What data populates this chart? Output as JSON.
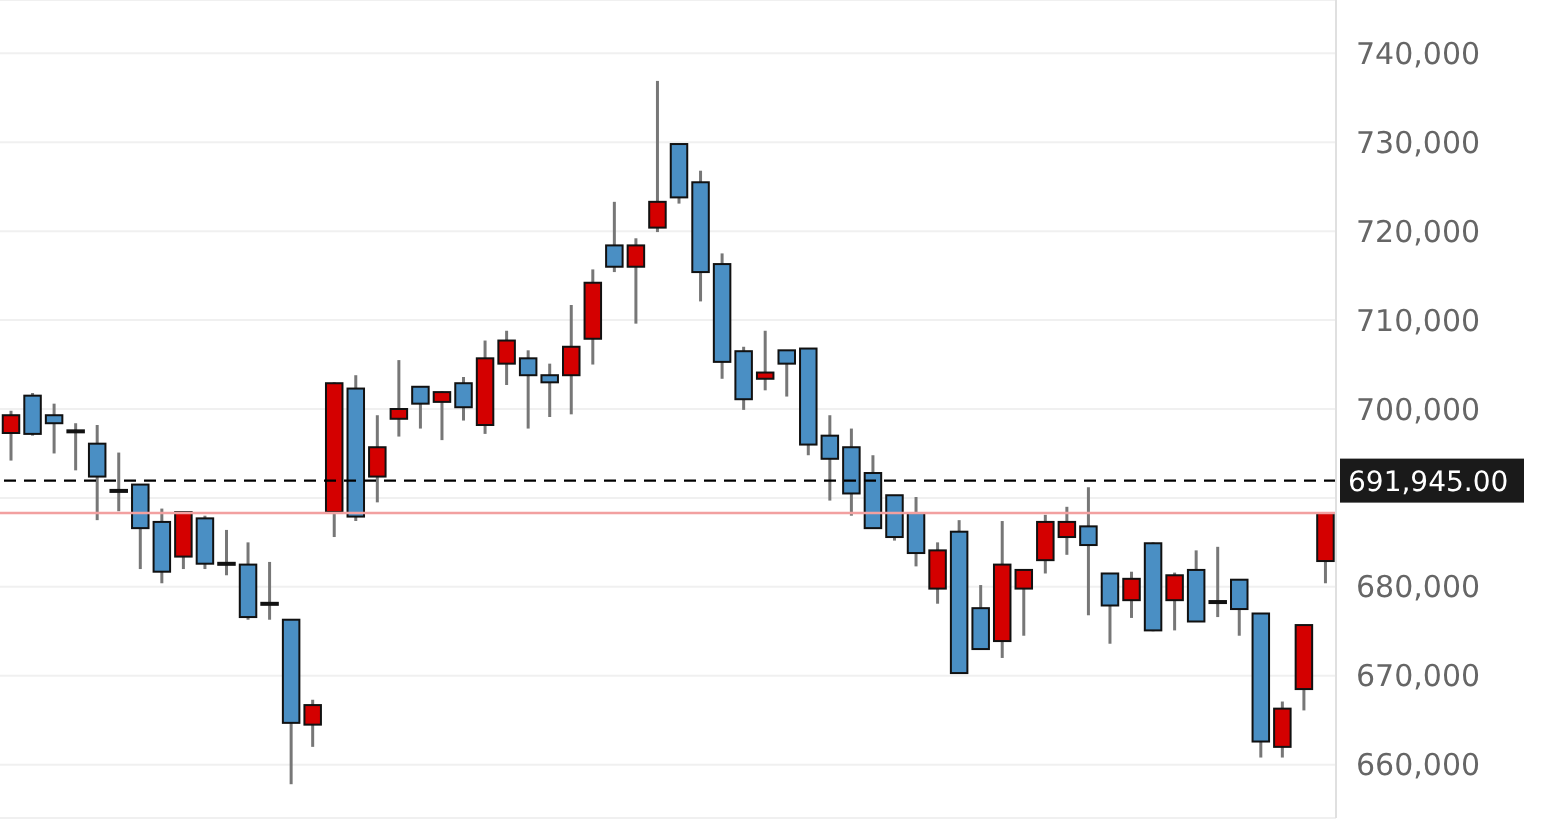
{
  "chart_data": {
    "type": "candlestick",
    "categories": [
      null,
      null,
      null,
      null,
      null,
      null,
      null,
      null,
      null,
      null,
      null,
      null,
      null,
      null,
      null,
      null,
      null,
      null,
      null,
      null,
      null,
      null,
      null,
      null,
      null,
      null,
      null,
      null,
      null,
      null,
      null,
      null,
      null,
      null,
      null,
      null,
      null,
      null,
      null,
      null,
      null,
      null,
      null,
      null,
      null,
      null,
      null,
      null,
      null,
      null,
      null,
      null,
      null,
      null,
      null,
      null,
      null,
      null,
      null,
      null,
      null,
      null
    ],
    "ohlc": [
      [
        697300,
        699800,
        694200,
        699300
      ],
      [
        701500,
        701800,
        697000,
        697200
      ],
      [
        699300,
        700600,
        695000,
        698400
      ],
      [
        697600,
        698400,
        693100,
        697500
      ],
      [
        696100,
        698200,
        687500,
        692400
      ],
      [
        690900,
        695100,
        688500,
        690800
      ],
      [
        691500,
        691500,
        682000,
        686600
      ],
      [
        687300,
        688800,
        680400,
        681700
      ],
      [
        683400,
        688400,
        682000,
        688400
      ],
      [
        687700,
        688000,
        682000,
        682600
      ],
      [
        682700,
        686400,
        681300,
        682600
      ],
      [
        682500,
        685000,
        676300,
        676600
      ],
      [
        678200,
        682800,
        676300,
        678100
      ],
      [
        676300,
        676300,
        657800,
        664700
      ],
      [
        664500,
        667300,
        662000,
        666700
      ],
      [
        688400,
        703000,
        685600,
        702900
      ],
      [
        702300,
        703800,
        687400,
        687900
      ],
      [
        692400,
        699300,
        689500,
        695700
      ],
      [
        698900,
        705500,
        696900,
        700000
      ],
      [
        702500,
        702500,
        697800,
        700600
      ],
      [
        700800,
        702000,
        696500,
        701900
      ],
      [
        702900,
        703600,
        698700,
        700200
      ],
      [
        698200,
        707700,
        697200,
        705700
      ],
      [
        705100,
        708800,
        702700,
        707700
      ],
      [
        705700,
        706600,
        697800,
        703800
      ],
      [
        703800,
        705100,
        699100,
        703000
      ],
      [
        703800,
        711700,
        699400,
        707000
      ],
      [
        707900,
        715700,
        705000,
        714200
      ],
      [
        718400,
        723300,
        715400,
        716000
      ],
      [
        716000,
        719200,
        709600,
        718400
      ],
      [
        720400,
        736900,
        719900,
        723300
      ],
      [
        729800,
        729800,
        723100,
        723800
      ],
      [
        725500,
        726800,
        712100,
        715400
      ],
      [
        716300,
        717500,
        703400,
        705300
      ],
      [
        706500,
        707000,
        699900,
        701100
      ],
      [
        703400,
        708800,
        702100,
        704100
      ],
      [
        706600,
        706600,
        701400,
        705100
      ],
      [
        706800,
        706800,
        694800,
        696000
      ],
      [
        697000,
        699300,
        689700,
        694400
      ],
      [
        695700,
        697800,
        688000,
        690500
      ],
      [
        692800,
        694800,
        686600,
        686600
      ],
      [
        690300,
        690300,
        685200,
        685600
      ],
      [
        688300,
        690100,
        682300,
        683800
      ],
      [
        679800,
        685000,
        678100,
        684100
      ],
      [
        686200,
        687500,
        670300,
        670300
      ],
      [
        677600,
        680200,
        673000,
        673000
      ],
      [
        673900,
        687400,
        672000,
        682500
      ],
      [
        679800,
        681900,
        674500,
        681900
      ],
      [
        683000,
        688100,
        681500,
        687300
      ],
      [
        685600,
        689000,
        683600,
        687300
      ],
      [
        686800,
        691200,
        676800,
        684700
      ],
      [
        681500,
        681500,
        673600,
        677900
      ],
      [
        678500,
        681700,
        676500,
        680900
      ],
      [
        684900,
        685000,
        675000,
        675100
      ],
      [
        678500,
        681600,
        675100,
        681300
      ],
      [
        681900,
        684100,
        676100,
        676100
      ],
      [
        678400,
        684500,
        676600,
        678300
      ],
      [
        680800,
        680800,
        674500,
        677500
      ],
      [
        677000,
        677000,
        660800,
        662600
      ],
      [
        662000,
        667100,
        660800,
        666300
      ],
      [
        668500,
        675700,
        666100,
        675700
      ],
      [
        682900,
        688300,
        680400,
        688300
      ]
    ],
    "colors": [
      "#d40000",
      "#4a8fc4",
      "#4a8fc4",
      "#4a8fc4",
      "#4a8fc4",
      "#4a8fc4",
      "#4a8fc4",
      "#4a8fc4",
      "#d40000",
      "#4a8fc4",
      "#4a8fc4",
      "#4a8fc4",
      "#4a8fc4",
      "#4a8fc4",
      "#d40000",
      "#d40000",
      "#4a8fc4",
      "#d40000",
      "#d40000",
      "#4a8fc4",
      "#d40000",
      "#4a8fc4",
      "#d40000",
      "#d40000",
      "#4a8fc4",
      "#4a8fc4",
      "#d40000",
      "#d40000",
      "#4a8fc4",
      "#d40000",
      "#d40000",
      "#4a8fc4",
      "#4a8fc4",
      "#4a8fc4",
      "#4a8fc4",
      "#d40000",
      "#4a8fc4",
      "#4a8fc4",
      "#4a8fc4",
      "#4a8fc4",
      "#4a8fc4",
      "#4a8fc4",
      "#4a8fc4",
      "#d40000",
      "#4a8fc4",
      "#4a8fc4",
      "#d40000",
      "#d40000",
      "#d40000",
      "#d40000",
      "#4a8fc4",
      "#4a8fc4",
      "#d40000",
      "#4a8fc4",
      "#d40000",
      "#4a8fc4",
      "#4a8fc4",
      "#4a8fc4",
      "#4a8fc4",
      "#d40000",
      "#d40000",
      "#d40000"
    ],
    "ylim": [
      654000,
      746000
    ],
    "yticks": [
      {
        "value": 660000,
        "label": "660,000"
      },
      {
        "value": 670000,
        "label": "670,000"
      },
      {
        "value": 680000,
        "label": "680,000"
      },
      {
        "value": 690000,
        "label": null
      },
      {
        "value": 700000,
        "label": "700,000"
      },
      {
        "value": 710000,
        "label": "710,000"
      },
      {
        "value": 720000,
        "label": "720,000"
      },
      {
        "value": 730000,
        "label": "730,000"
      },
      {
        "value": 740000,
        "label": "740,000"
      }
    ],
    "ref_lines": [
      {
        "axis": "y",
        "value": 691945,
        "label": "691,945.00",
        "color": "#000000",
        "line_style": "dashed"
      },
      {
        "axis": "y",
        "value": 688300,
        "color": "#f2a0a0",
        "line_style": "solid"
      }
    ],
    "grid": "y",
    "tick_labels": "y"
  }
}
